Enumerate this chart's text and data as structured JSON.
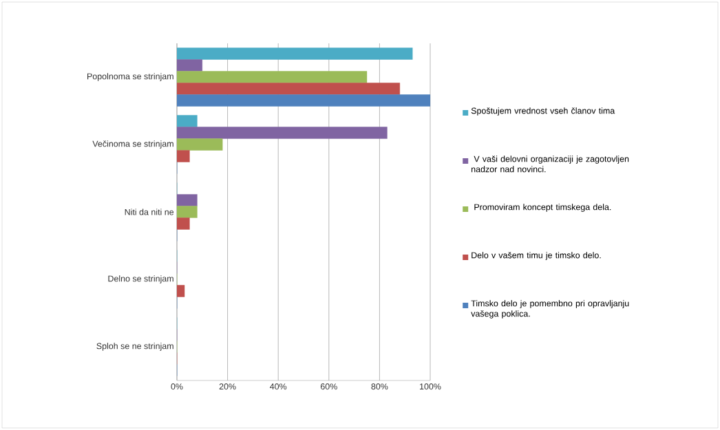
{
  "chart_data": {
    "type": "bar",
    "orientation": "horizontal",
    "categories": [
      "Popolnoma se strinjam",
      "Večinoma se strinjam",
      "Niti da niti ne",
      "Delno se strinjam",
      "Sploh se ne  strinjam"
    ],
    "series": [
      {
        "name": "Spoštujem vrednost vseh članov tima",
        "color": "#4bacc6",
        "values": [
          93,
          8,
          0,
          0,
          0
        ]
      },
      {
        "name": " V vaši delovni organizaciji je zagotovljen nadzor nad novinci.",
        "color": "#8064a2",
        "values": [
          10,
          83,
          8,
          0,
          0
        ]
      },
      {
        "name": " Promoviram koncept timskega dela.",
        "color": "#9bbb59",
        "values": [
          75,
          18,
          8,
          0,
          0
        ]
      },
      {
        "name": "Delo v vašem timu je timsko delo.",
        "color": "#c0504d",
        "values": [
          88,
          5,
          5,
          3,
          0
        ]
      },
      {
        "name": "Timsko delo je pomembno pri opravljanju vašega poklica.",
        "color": "#4f81bd",
        "values": [
          100,
          0,
          0,
          0,
          0
        ]
      }
    ],
    "xlim": [
      0,
      100
    ],
    "xticks": [
      {
        "value": 0,
        "label": "0%"
      },
      {
        "value": 20,
        "label": "20%"
      },
      {
        "value": 40,
        "label": "40%"
      },
      {
        "value": 60,
        "label": "60%"
      },
      {
        "value": 80,
        "label": "80%"
      },
      {
        "value": 100,
        "label": "100%"
      }
    ],
    "grid": "x",
    "legend": "right"
  }
}
